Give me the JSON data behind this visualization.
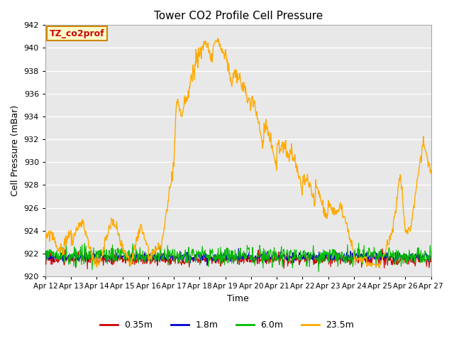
{
  "title": "Tower CO2 Profile Cell Pressure",
  "xlabel": "Time",
  "ylabel": "Cell Pressure (mBar)",
  "ylim": [
    920,
    942
  ],
  "yticks": [
    920,
    922,
    924,
    926,
    928,
    930,
    932,
    934,
    936,
    938,
    940,
    942
  ],
  "legend_label": "TZ_co2prof",
  "series": {
    "0.35m": {
      "color": "#cc0000",
      "lw": 0.8
    },
    "1.8m": {
      "color": "#0000cc",
      "lw": 0.8
    },
    "6.0m": {
      "color": "#00bb00",
      "lw": 0.8
    },
    "23.5m": {
      "color": "#ffaa00",
      "lw": 1.0
    }
  },
  "fig_bg_color": "#ffffff",
  "plot_bg_color": "#e8e8e8",
  "grid_color": "#ffffff",
  "n_points": 800,
  "x_tick_labels": [
    "Apr 12",
    "Apr 13",
    "Apr 14",
    "Apr 15",
    "Apr 16",
    "Apr 17",
    "Apr 18",
    "Apr 19",
    "Apr 20",
    "Apr 21",
    "Apr 22",
    "Apr 23",
    "Apr 24",
    "Apr 25",
    "Apr 26",
    "Apr 27"
  ]
}
